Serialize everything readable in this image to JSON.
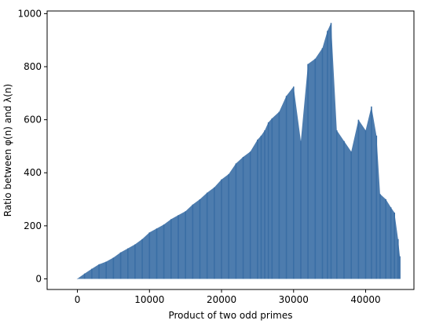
{
  "chart_data": {
    "type": "line",
    "title": "",
    "xlabel": "Product of two odd primes",
    "ylabel": "Ratio between φ(n) and λ(n)",
    "xlim": [
      -4200,
      46700
    ],
    "ylim": [
      -40,
      1010
    ],
    "xticks": [
      0,
      10000,
      20000,
      30000,
      40000
    ],
    "yticks": [
      0,
      200,
      400,
      600,
      800,
      1000
    ],
    "xtick_labels": [
      "0",
      "10000",
      "20000",
      "30000",
      "40000"
    ],
    "ytick_labels": [
      "0",
      "200",
      "400",
      "600",
      "800",
      "1000"
    ],
    "grid": false,
    "series": [
      {
        "color": "#3a6ea5",
        "points": [
          [
            15,
            1
          ],
          [
            1000,
            20
          ],
          [
            2000,
            38
          ],
          [
            3000,
            55
          ],
          [
            4000,
            65
          ],
          [
            5000,
            80
          ],
          [
            6000,
            100
          ],
          [
            7000,
            115
          ],
          [
            8000,
            130
          ],
          [
            9000,
            150
          ],
          [
            10000,
            175
          ],
          [
            11000,
            190
          ],
          [
            12000,
            205
          ],
          [
            13000,
            225
          ],
          [
            14000,
            240
          ],
          [
            15000,
            255
          ],
          [
            16000,
            280
          ],
          [
            17000,
            300
          ],
          [
            18000,
            325
          ],
          [
            19000,
            345
          ],
          [
            20000,
            375
          ],
          [
            21000,
            395
          ],
          [
            22000,
            435
          ],
          [
            23000,
            460
          ],
          [
            24000,
            480
          ],
          [
            25000,
            525
          ],
          [
            25500,
            540
          ],
          [
            26000,
            560
          ],
          [
            26500,
            590
          ],
          [
            27000,
            605
          ],
          [
            28000,
            630
          ],
          [
            29000,
            690
          ],
          [
            30000,
            725
          ],
          [
            31000,
            520
          ],
          [
            32000,
            810
          ],
          [
            33000,
            830
          ],
          [
            34000,
            870
          ],
          [
            34700,
            935
          ],
          [
            35200,
            965
          ],
          [
            36000,
            560
          ],
          [
            37000,
            520
          ],
          [
            38000,
            480
          ],
          [
            39000,
            600
          ],
          [
            40000,
            560
          ],
          [
            40800,
            650
          ],
          [
            41500,
            540
          ],
          [
            42000,
            320
          ],
          [
            42800,
            300
          ],
          [
            43500,
            270
          ],
          [
            44000,
            250
          ],
          [
            44500,
            150
          ],
          [
            44750,
            85
          ]
        ]
      }
    ]
  }
}
